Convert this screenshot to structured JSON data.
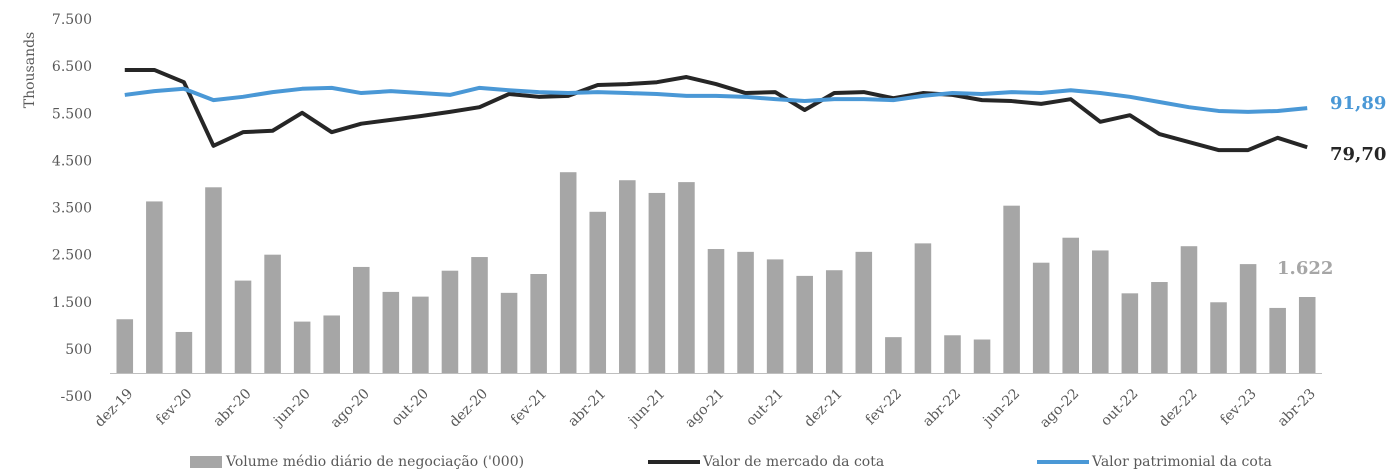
{
  "chart_data": {
    "type": "bar",
    "y_axis_label": "Thousands",
    "categories": [
      "dez-19",
      null,
      "fev-20",
      null,
      "abr-20",
      null,
      "jun-20",
      null,
      "ago-20",
      null,
      "out-20",
      null,
      "dez-20",
      null,
      "fev-21",
      null,
      "abr-21",
      null,
      "jun-21",
      null,
      "ago-21",
      null,
      "out-21",
      null,
      "dez-21",
      null,
      "fev-22",
      null,
      "abr-22",
      null,
      "jun-22",
      null,
      "ago-22",
      null,
      "out-22",
      null,
      "dez-22",
      null,
      "fev-23",
      null,
      "abr-23"
    ],
    "series": [
      {
        "name": "Volume médio diário de negociação ('000)",
        "type": "bar",
        "color": "#a6a6a6",
        "end_label": "1.622",
        "values": [
          1150,
          3650,
          880,
          3950,
          1970,
          2520,
          1100,
          1230,
          2260,
          1730,
          1630,
          2180,
          2470,
          1710,
          2110,
          4270,
          3430,
          4100,
          3830,
          4060,
          2640,
          2580,
          2420,
          2070,
          2190,
          2580,
          770,
          2760,
          810,
          720,
          3560,
          2350,
          2880,
          2610,
          1700,
          1940,
          2700,
          1510,
          2320,
          1390,
          1622
        ]
      },
      {
        "name": "Valor de mercado da cota",
        "type": "line",
        "color": "#262626",
        "end_label": "79,70",
        "values": [
          6440,
          6440,
          6180,
          4830,
          5120,
          5150,
          5530,
          5120,
          5300,
          5380,
          5460,
          5550,
          5650,
          5930,
          5870,
          5890,
          6120,
          6140,
          6180,
          6290,
          6140,
          5950,
          5970,
          5590,
          5950,
          5970,
          5840,
          5950,
          5910,
          5800,
          5780,
          5720,
          5820,
          5340,
          5480,
          5080,
          4910,
          4740,
          4740,
          5000,
          4800
        ]
      },
      {
        "name": "Valor patrimonial da cota",
        "type": "line",
        "color": "#4a98d6",
        "end_label": "91,89",
        "values": [
          5910,
          5990,
          6040,
          5800,
          5870,
          5970,
          6040,
          6060,
          5950,
          5990,
          5950,
          5910,
          6060,
          6010,
          5970,
          5950,
          5970,
          5950,
          5930,
          5890,
          5890,
          5870,
          5820,
          5780,
          5820,
          5820,
          5800,
          5890,
          5950,
          5930,
          5970,
          5950,
          6010,
          5950,
          5870,
          5760,
          5650,
          5570,
          5550,
          5570,
          5630
        ]
      }
    ],
    "ylim": [
      -500,
      7500
    ],
    "yticks": [
      -500,
      500,
      {
        "value": 1500,
        "label": "1.500"
      },
      {
        "value": 2500,
        "label": "2.500"
      },
      {
        "value": 3500,
        "label": "3.500"
      },
      {
        "value": 4500,
        "label": "4.500"
      },
      {
        "value": 5500,
        "label": "5.500"
      },
      {
        "value": 6500,
        "label": "6.500"
      },
      {
        "value": 7500,
        "label": "7.500"
      }
    ],
    "grid": false,
    "legend": "bottom"
  }
}
